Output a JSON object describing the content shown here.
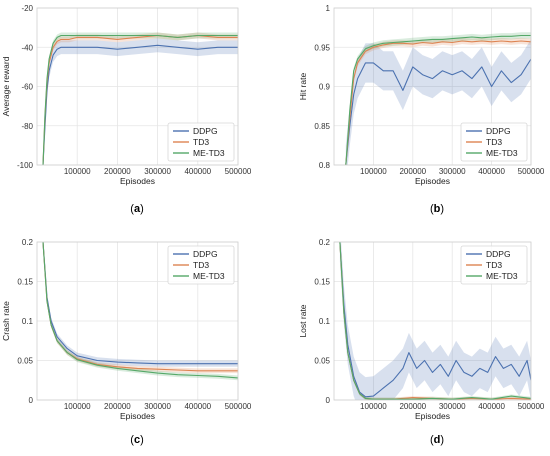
{
  "figure": {
    "colors": {
      "DDPG": "#4c72b0",
      "TD3": "#dd8452",
      "ME-TD3": "#55a868",
      "grid": "#e5e5e5",
      "frame": "#cfcfcf"
    }
  },
  "chart_data": [
    {
      "type": "line",
      "caption": "a",
      "xlabel": "Episodes",
      "ylabel": "Average reward",
      "xlim": [
        0,
        500000
      ],
      "ylim": [
        -100,
        -20
      ],
      "xticks": [
        100000,
        200000,
        300000,
        400000,
        500000
      ],
      "yticks": [
        -100,
        -80,
        -60,
        -40,
        -20
      ],
      "grid": true,
      "legend": "lower-right",
      "series": [
        {
          "name": "DDPG",
          "x": [
            15000,
            20000,
            25000,
            30000,
            40000,
            50000,
            60000,
            80000,
            100000,
            150000,
            200000,
            250000,
            300000,
            350000,
            400000,
            450000,
            500000
          ],
          "y": [
            -100,
            -80,
            -62,
            -52,
            -44,
            -41,
            -40,
            -40,
            -40,
            -40,
            -41,
            -40,
            -39,
            -40,
            -41,
            -40,
            -40
          ],
          "band": 3.5
        },
        {
          "name": "TD3",
          "x": [
            15000,
            20000,
            25000,
            30000,
            40000,
            50000,
            60000,
            80000,
            100000,
            150000,
            200000,
            250000,
            300000,
            350000,
            400000,
            450000,
            500000
          ],
          "y": [
            -100,
            -75,
            -58,
            -48,
            -40,
            -37,
            -36,
            -36,
            -35,
            -35,
            -36,
            -35,
            -34,
            -35,
            -34,
            -35,
            -35
          ],
          "band": 1.5
        },
        {
          "name": "ME-TD3",
          "x": [
            15000,
            20000,
            25000,
            30000,
            40000,
            50000,
            60000,
            80000,
            100000,
            150000,
            200000,
            250000,
            300000,
            350000,
            400000,
            450000,
            500000
          ],
          "y": [
            -100,
            -74,
            -56,
            -46,
            -38,
            -35,
            -34,
            -34,
            -34,
            -34,
            -34,
            -34,
            -34,
            -35,
            -34,
            -34,
            -34
          ],
          "band": 1.5
        }
      ]
    },
    {
      "type": "line",
      "caption": "b",
      "xlabel": "Episodes",
      "ylabel": "Hit rate",
      "xlim": [
        0,
        500000
      ],
      "ylim": [
        0.8,
        1.0
      ],
      "xticks": [
        100000,
        200000,
        300000,
        400000,
        500000
      ],
      "yticks": [
        0.8,
        0.85,
        0.9,
        0.95,
        1.0
      ],
      "ytickLabels": [
        "0.8",
        "0.85",
        "0.9",
        "0.95",
        "1"
      ],
      "grid": true,
      "legend": "lower-right",
      "series": [
        {
          "name": "DDPG",
          "x": [
            30000,
            40000,
            50000,
            60000,
            80000,
            100000,
            125000,
            150000,
            175000,
            200000,
            225000,
            250000,
            275000,
            300000,
            325000,
            350000,
            375000,
            400000,
            425000,
            450000,
            475000,
            500000
          ],
          "y": [
            0.8,
            0.85,
            0.89,
            0.91,
            0.93,
            0.93,
            0.92,
            0.92,
            0.895,
            0.925,
            0.915,
            0.91,
            0.92,
            0.915,
            0.92,
            0.91,
            0.925,
            0.9,
            0.92,
            0.905,
            0.915,
            0.935
          ],
          "band": 0.025
        },
        {
          "name": "TD3",
          "x": [
            30000,
            40000,
            50000,
            60000,
            80000,
            100000,
            125000,
            150000,
            175000,
            200000,
            225000,
            250000,
            275000,
            300000,
            325000,
            350000,
            375000,
            400000,
            425000,
            450000,
            475000,
            500000
          ],
          "y": [
            0.8,
            0.86,
            0.91,
            0.93,
            0.945,
            0.95,
            0.953,
            0.955,
            0.955,
            0.954,
            0.956,
            0.955,
            0.957,
            0.956,
            0.958,
            0.957,
            0.958,
            0.957,
            0.958,
            0.957,
            0.958,
            0.957
          ],
          "band": 0.004
        },
        {
          "name": "ME-TD3",
          "x": [
            30000,
            40000,
            50000,
            60000,
            80000,
            100000,
            125000,
            150000,
            175000,
            200000,
            225000,
            250000,
            275000,
            300000,
            325000,
            350000,
            375000,
            400000,
            425000,
            450000,
            475000,
            500000
          ],
          "y": [
            0.8,
            0.87,
            0.92,
            0.935,
            0.948,
            0.952,
            0.955,
            0.956,
            0.957,
            0.958,
            0.959,
            0.96,
            0.96,
            0.961,
            0.962,
            0.963,
            0.962,
            0.963,
            0.964,
            0.964,
            0.965,
            0.965
          ],
          "band": 0.004
        }
      ]
    },
    {
      "type": "line",
      "caption": "c",
      "xlabel": "Episodes",
      "ylabel": "Crash rate",
      "xlim": [
        0,
        500000
      ],
      "ylim": [
        0,
        0.2
      ],
      "xticks": [
        100000,
        200000,
        300000,
        400000,
        500000
      ],
      "yticks": [
        0,
        0.05,
        0.1,
        0.15,
        0.2
      ],
      "ytickLabels": [
        "0",
        "0.05",
        "0.1",
        "0.15",
        "0.2"
      ],
      "grid": true,
      "legend": "upper-right",
      "series": [
        {
          "name": "DDPG",
          "x": [
            15000,
            25000,
            35000,
            50000,
            75000,
            100000,
            150000,
            200000,
            250000,
            300000,
            350000,
            400000,
            450000,
            500000
          ],
          "y": [
            0.2,
            0.13,
            0.1,
            0.08,
            0.065,
            0.056,
            0.05,
            0.048,
            0.047,
            0.046,
            0.046,
            0.046,
            0.046,
            0.046
          ],
          "band": 0.004
        },
        {
          "name": "TD3",
          "x": [
            15000,
            25000,
            35000,
            50000,
            75000,
            100000,
            150000,
            200000,
            250000,
            300000,
            350000,
            400000,
            450000,
            500000
          ],
          "y": [
            0.2,
            0.125,
            0.095,
            0.075,
            0.06,
            0.052,
            0.045,
            0.042,
            0.04,
            0.039,
            0.038,
            0.037,
            0.037,
            0.037
          ],
          "band": 0.003
        },
        {
          "name": "ME-TD3",
          "x": [
            15000,
            25000,
            35000,
            50000,
            75000,
            100000,
            150000,
            200000,
            250000,
            300000,
            350000,
            400000,
            450000,
            500000
          ],
          "y": [
            0.2,
            0.125,
            0.095,
            0.075,
            0.06,
            0.051,
            0.044,
            0.04,
            0.037,
            0.034,
            0.032,
            0.031,
            0.03,
            0.028
          ],
          "band": 0.003
        }
      ]
    },
    {
      "type": "line",
      "caption": "d",
      "xlabel": "Episodes",
      "ylabel": "Lost rate",
      "xlim": [
        0,
        500000
      ],
      "ylim": [
        0,
        0.2
      ],
      "xticks": [
        100000,
        200000,
        300000,
        400000,
        500000
      ],
      "yticks": [
        0,
        0.05,
        0.1,
        0.15,
        0.2
      ],
      "ytickLabels": [
        "0",
        "0.05",
        "0.1",
        "0.15",
        "0.2"
      ],
      "grid": true,
      "legend": "upper-right",
      "series": [
        {
          "name": "DDPG",
          "x": [
            15000,
            25000,
            35000,
            50000,
            65000,
            80000,
            100000,
            125000,
            150000,
            175000,
            190000,
            210000,
            230000,
            250000,
            270000,
            290000,
            310000,
            330000,
            350000,
            370000,
            390000,
            410000,
            430000,
            450000,
            470000,
            490000,
            500000
          ],
          "y": [
            0.2,
            0.12,
            0.07,
            0.03,
            0.01,
            0.004,
            0.005,
            0.015,
            0.025,
            0.04,
            0.06,
            0.04,
            0.05,
            0.035,
            0.045,
            0.03,
            0.05,
            0.035,
            0.03,
            0.04,
            0.035,
            0.055,
            0.04,
            0.045,
            0.03,
            0.05,
            0.025
          ],
          "band": 0.025
        },
        {
          "name": "TD3",
          "x": [
            15000,
            25000,
            35000,
            50000,
            65000,
            80000,
            100000,
            150000,
            200000,
            250000,
            300000,
            350000,
            400000,
            450000,
            500000
          ],
          "y": [
            0.2,
            0.11,
            0.06,
            0.025,
            0.008,
            0.002,
            0.001,
            0.001,
            0.003,
            0.002,
            0.001,
            0.002,
            0.001,
            0.002,
            0.001
          ],
          "band": 0.002
        },
        {
          "name": "ME-TD3",
          "x": [
            15000,
            25000,
            35000,
            50000,
            65000,
            80000,
            100000,
            150000,
            200000,
            250000,
            300000,
            350000,
            400000,
            450000,
            500000
          ],
          "y": [
            0.2,
            0.11,
            0.06,
            0.025,
            0.008,
            0.002,
            0.001,
            0.001,
            0.001,
            0.002,
            0.001,
            0.003,
            0.001,
            0.005,
            0.002
          ],
          "band": 0.002
        }
      ]
    }
  ]
}
